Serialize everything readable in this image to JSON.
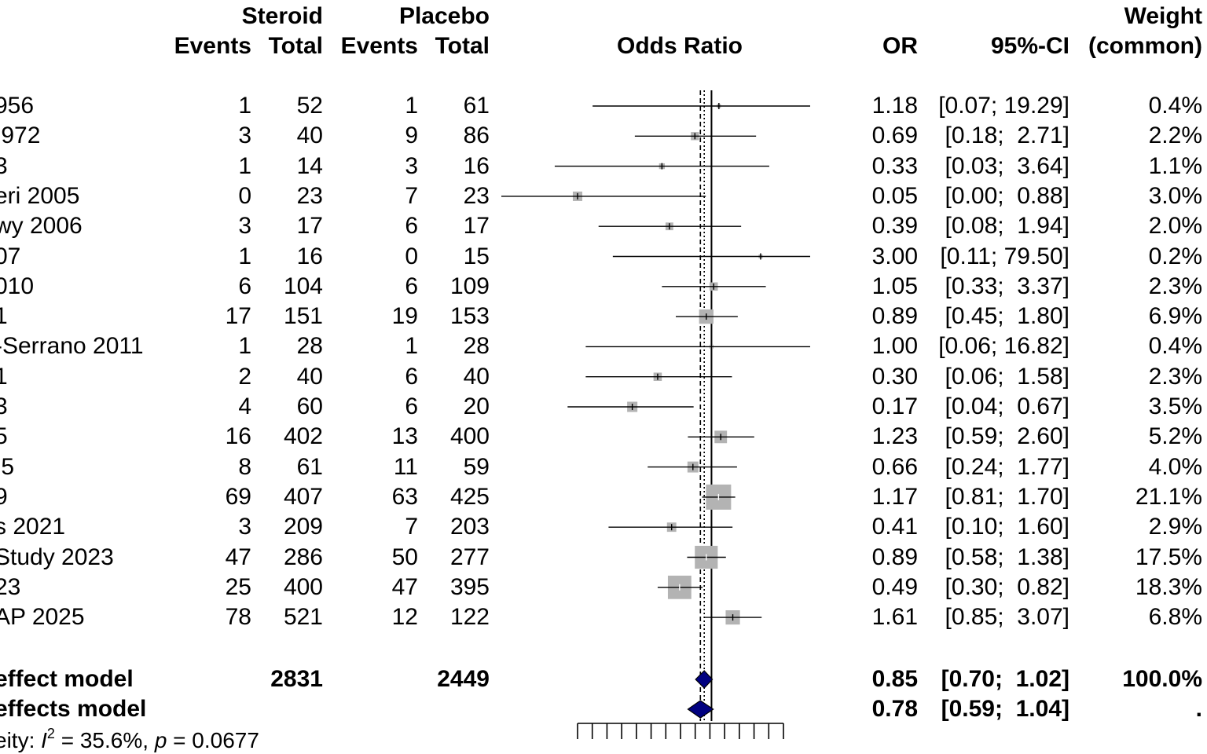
{
  "headers": {
    "group1": "Steroid",
    "group2": "Placebo",
    "events": "Events",
    "total": "Total",
    "plot": "Odds Ratio",
    "or": "OR",
    "ci": "95%-CI",
    "weight_top": "Weight",
    "weight_bottom": "(common)"
  },
  "studies": [
    {
      "label": "956",
      "e1": "1",
      "n1": "52",
      "e2": "1",
      "n2": "61",
      "or_text": "1.18",
      "ci_text": "[0.07; 19.29]",
      "weight_text": "0.4%"
    },
    {
      "label": " 972",
      "e1": "3",
      "n1": "40",
      "e2": "9",
      "n2": "86",
      "or_text": "0.69",
      "ci_text": "[0.18;  2.71]",
      "weight_text": "2.2%"
    },
    {
      "label": "3",
      "e1": "1",
      "n1": "14",
      "e2": "3",
      "n2": "16",
      "or_text": "0.33",
      "ci_text": "[0.03;  3.64]",
      "weight_text": "1.1%"
    },
    {
      "label": "eri 2005",
      "e1": "0",
      "n1": "23",
      "e2": "7",
      "n2": "23",
      "or_text": "0.05",
      "ci_text": "[0.00;  0.88]",
      "weight_text": "3.0%"
    },
    {
      "label": "wy 2006",
      "e1": "3",
      "n1": "17",
      "e2": "6",
      "n2": "17",
      "or_text": "0.39",
      "ci_text": "[0.08;  1.94]",
      "weight_text": "2.0%"
    },
    {
      "label": "07",
      "e1": "1",
      "n1": "16",
      "e2": "0",
      "n2": "15",
      "or_text": "3.00",
      "ci_text": "[0.11; 79.50]",
      "weight_text": "0.2%"
    },
    {
      "label": "010",
      "e1": "6",
      "n1": "104",
      "e2": "6",
      "n2": "109",
      "or_text": "1.05",
      "ci_text": "[0.33;  3.37]",
      "weight_text": "2.3%"
    },
    {
      "label": "1",
      "e1": "17",
      "n1": "151",
      "e2": "19",
      "n2": "153",
      "or_text": "0.89",
      "ci_text": "[0.45;  1.80]",
      "weight_text": "6.9%"
    },
    {
      "label": "-Serrano 2011",
      "e1": "1",
      "n1": "28",
      "e2": "1",
      "n2": "28",
      "or_text": "1.00",
      "ci_text": "[0.06; 16.82]",
      "weight_text": "0.4%"
    },
    {
      "label": "1",
      "e1": "2",
      "n1": "40",
      "e2": "6",
      "n2": "40",
      "or_text": "0.30",
      "ci_text": "[0.06;  1.58]",
      "weight_text": "2.3%"
    },
    {
      "label": "3",
      "e1": "4",
      "n1": "60",
      "e2": "6",
      "n2": "20",
      "or_text": "0.17",
      "ci_text": "[0.04;  0.67]",
      "weight_text": "3.5%"
    },
    {
      "label": "5",
      "e1": "16",
      "n1": "402",
      "e2": "13",
      "n2": "400",
      "or_text": "1.23",
      "ci_text": "[0.59;  2.60]",
      "weight_text": "5.2%"
    },
    {
      "label": " 5",
      "e1": "8",
      "n1": "61",
      "e2": "11",
      "n2": "59",
      "or_text": "0.66",
      "ci_text": "[0.24;  1.77]",
      "weight_text": "4.0%"
    },
    {
      "label": "9",
      "e1": "69",
      "n1": "407",
      "e2": "63",
      "n2": "425",
      "or_text": "1.17",
      "ci_text": "[0.81;  1.70]",
      "weight_text": "21.1%"
    },
    {
      "label": "s 2021",
      "e1": "3",
      "n1": "209",
      "e2": "7",
      "n2": "203",
      "or_text": "0.41",
      "ci_text": "[0.10;  1.60]",
      "weight_text": "2.9%"
    },
    {
      "label": "Study 2023",
      "e1": "47",
      "n1": "286",
      "e2": "50",
      "n2": "277",
      "or_text": "0.89",
      "ci_text": "[0.58;  1.38]",
      "weight_text": "17.5%"
    },
    {
      "label": "23",
      "e1": "25",
      "n1": "400",
      "e2": "47",
      "n2": "395",
      "or_text": "0.49",
      "ci_text": "[0.30;  0.82]",
      "weight_text": "18.3%"
    },
    {
      "label": "AP 2025",
      "e1": "78",
      "n1": "521",
      "e2": "12",
      "n2": "122",
      "or_text": "1.61",
      "ci_text": "[0.85;  3.07]",
      "weight_text": "6.8%"
    }
  ],
  "pooled": [
    {
      "label": "effect model",
      "n1": "2831",
      "n2": "2449",
      "or_text": "0.85",
      "ci_text": "[0.70;  1.02]",
      "weight_text": "100.0%"
    },
    {
      "label": "effects model",
      "n1": "",
      "n2": "",
      "or_text": "0.78",
      "ci_text": "[0.59;  1.04]",
      "weight_text": "."
    }
  ],
  "heterogeneity": {
    "prefix": "eity: ",
    "i2_symbol": "I",
    "i2_exp": "2",
    "i2_rest": " = 35.6%, ",
    "p_symbol": "p",
    "p_rest": " = 0.0677"
  },
  "colors": {
    "box": "#b3b3b3",
    "diamond": "#000080",
    "line": "#000000"
  },
  "chart_data": {
    "type": "forest",
    "scale": "log",
    "xlim": [
      0.05,
      5
    ],
    "reference_line": 1,
    "studies": [
      {
        "or": 1.18,
        "lower": 0.07,
        "upper": 19.29,
        "weight": 0.4
      },
      {
        "or": 0.69,
        "lower": 0.18,
        "upper": 2.71,
        "weight": 2.2
      },
      {
        "or": 0.33,
        "lower": 0.03,
        "upper": 3.64,
        "weight": 1.1
      },
      {
        "or": 0.05,
        "lower": 0.0,
        "upper": 0.88,
        "weight": 3.0
      },
      {
        "or": 0.39,
        "lower": 0.08,
        "upper": 1.94,
        "weight": 2.0
      },
      {
        "or": 3.0,
        "lower": 0.11,
        "upper": 79.5,
        "weight": 0.2
      },
      {
        "or": 1.05,
        "lower": 0.33,
        "upper": 3.37,
        "weight": 2.3
      },
      {
        "or": 0.89,
        "lower": 0.45,
        "upper": 1.8,
        "weight": 6.9
      },
      {
        "or": 1.0,
        "lower": 0.06,
        "upper": 16.82,
        "weight": 0.4
      },
      {
        "or": 0.3,
        "lower": 0.06,
        "upper": 1.58,
        "weight": 2.3
      },
      {
        "or": 0.17,
        "lower": 0.04,
        "upper": 0.67,
        "weight": 3.5
      },
      {
        "or": 1.23,
        "lower": 0.59,
        "upper": 2.6,
        "weight": 5.2
      },
      {
        "or": 0.66,
        "lower": 0.24,
        "upper": 1.77,
        "weight": 4.0
      },
      {
        "or": 1.17,
        "lower": 0.81,
        "upper": 1.7,
        "weight": 21.1
      },
      {
        "or": 0.41,
        "lower": 0.1,
        "upper": 1.6,
        "weight": 2.9
      },
      {
        "or": 0.89,
        "lower": 0.58,
        "upper": 1.38,
        "weight": 17.5
      },
      {
        "or": 0.49,
        "lower": 0.3,
        "upper": 0.82,
        "weight": 18.3
      },
      {
        "or": 1.61,
        "lower": 0.85,
        "upper": 3.07,
        "weight": 6.8
      }
    ],
    "pooled": [
      {
        "or": 0.85,
        "lower": 0.7,
        "upper": 1.02
      },
      {
        "or": 0.78,
        "lower": 0.59,
        "upper": 1.04
      }
    ]
  }
}
